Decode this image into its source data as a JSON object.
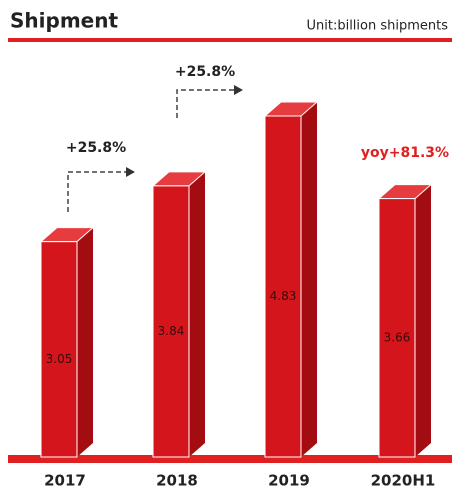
{
  "chart_data": {
    "type": "bar3d",
    "title": "Shipment",
    "subtitle": "Unit:billion shipments",
    "categories": [
      "2017",
      "2018",
      "2019",
      "2020H1"
    ],
    "values": [
      3.05,
      3.84,
      4.83,
      3.66
    ],
    "color": "#d4161c",
    "annotations": [
      {
        "text": "+25.8%"
      },
      {
        "text": "+25.8%"
      },
      {
        "text": "yoy+81.3%"
      }
    ]
  }
}
